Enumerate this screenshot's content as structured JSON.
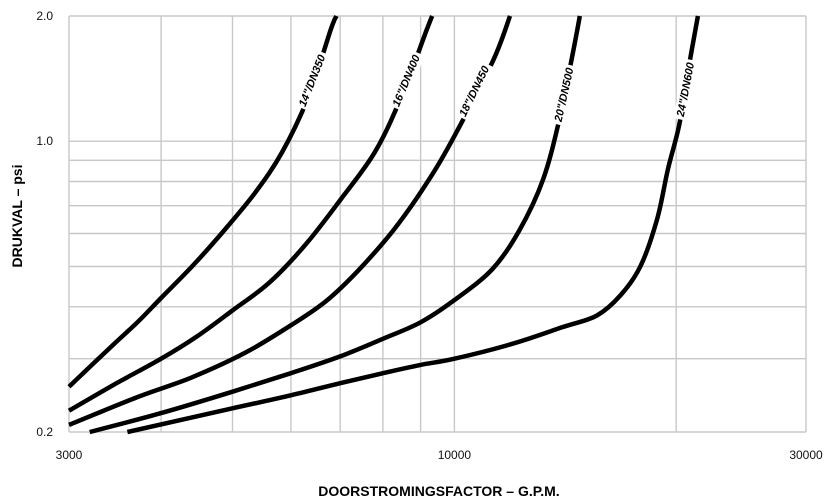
{
  "chart_data": {
    "type": "line",
    "xlabel": "DOORSTROMINGSFACTOR – G.P.M.",
    "ylabel": "DRUKVAL – psi",
    "x_scale": "log",
    "y_scale": "log",
    "xlim": [
      3000,
      30000
    ],
    "ylim": [
      0.2,
      2.0
    ],
    "x_ticks": [
      {
        "value": 3000,
        "label": "3000"
      },
      {
        "value": 10000,
        "label": "10000"
      },
      {
        "value": 30000,
        "label": "30000"
      }
    ],
    "y_ticks": [
      {
        "value": 0.2,
        "label": "0.2"
      },
      {
        "value": 1.0,
        "label": "1.0"
      },
      {
        "value": 2.0,
        "label": "2.0"
      }
    ],
    "x_gridlines": [
      3000,
      4000,
      5000,
      6000,
      7000,
      8000,
      9000,
      10000,
      20000,
      30000
    ],
    "y_gridlines": [
      0.2,
      0.3,
      0.4,
      0.5,
      0.6,
      0.7,
      0.8,
      0.9,
      1.0,
      2.0
    ],
    "grid": true,
    "series": [
      {
        "name": "14\"/DN350",
        "points": [
          [
            3000,
            0.257
          ],
          [
            3430,
            0.322
          ],
          [
            3720,
            0.368
          ],
          [
            4000,
            0.42
          ],
          [
            4420,
            0.503
          ],
          [
            4850,
            0.605
          ],
          [
            5360,
            0.75
          ],
          [
            5840,
            0.942
          ],
          [
            6340,
            1.28
          ],
          [
            6800,
            1.86
          ],
          [
            6920,
            2.0
          ]
        ]
      },
      {
        "name": "16\"/DN400",
        "points": [
          [
            3000,
            0.225
          ],
          [
            3480,
            0.262
          ],
          [
            4000,
            0.3
          ],
          [
            4480,
            0.34
          ],
          [
            5000,
            0.392
          ],
          [
            5600,
            0.456
          ],
          [
            6270,
            0.562
          ],
          [
            7000,
            0.722
          ],
          [
            7800,
            0.941
          ],
          [
            8460,
            1.27
          ],
          [
            9170,
            1.85
          ],
          [
            9330,
            2.0
          ]
        ]
      },
      {
        "name": "18\"/DN450",
        "points": [
          [
            3000,
            0.208
          ],
          [
            3700,
            0.242
          ],
          [
            4390,
            0.27
          ],
          [
            5200,
            0.31
          ],
          [
            6000,
            0.361
          ],
          [
            6700,
            0.413
          ],
          [
            7430,
            0.492
          ],
          [
            8350,
            0.625
          ],
          [
            9350,
            0.836
          ],
          [
            10150,
            1.08
          ],
          [
            11300,
            1.57
          ],
          [
            11900,
            2.0
          ]
        ]
      },
      {
        "name": "20\"/DN500",
        "points": [
          [
            3200,
            0.2
          ],
          [
            4000,
            0.222
          ],
          [
            5000,
            0.25
          ],
          [
            6000,
            0.277
          ],
          [
            7000,
            0.304
          ],
          [
            8000,
            0.335
          ],
          [
            9000,
            0.367
          ],
          [
            10000,
            0.415
          ],
          [
            11250,
            0.492
          ],
          [
            12250,
            0.61
          ],
          [
            13200,
            0.811
          ],
          [
            13900,
            1.14
          ],
          [
            14500,
            1.65
          ],
          [
            14800,
            2.0
          ]
        ]
      },
      {
        "name": "24\"/DN600",
        "points": [
          [
            3600,
            0.2
          ],
          [
            5000,
            0.228
          ],
          [
            6000,
            0.245
          ],
          [
            7000,
            0.262
          ],
          [
            8000,
            0.277
          ],
          [
            9000,
            0.29
          ],
          [
            10000,
            0.3
          ],
          [
            12000,
            0.326
          ],
          [
            14000,
            0.357
          ],
          [
            15600,
            0.381
          ],
          [
            16800,
            0.426
          ],
          [
            17900,
            0.502
          ],
          [
            18850,
            0.652
          ],
          [
            19500,
            0.86
          ],
          [
            20200,
            1.1
          ],
          [
            20800,
            1.51
          ],
          [
            21400,
            2.0
          ]
        ]
      }
    ]
  }
}
